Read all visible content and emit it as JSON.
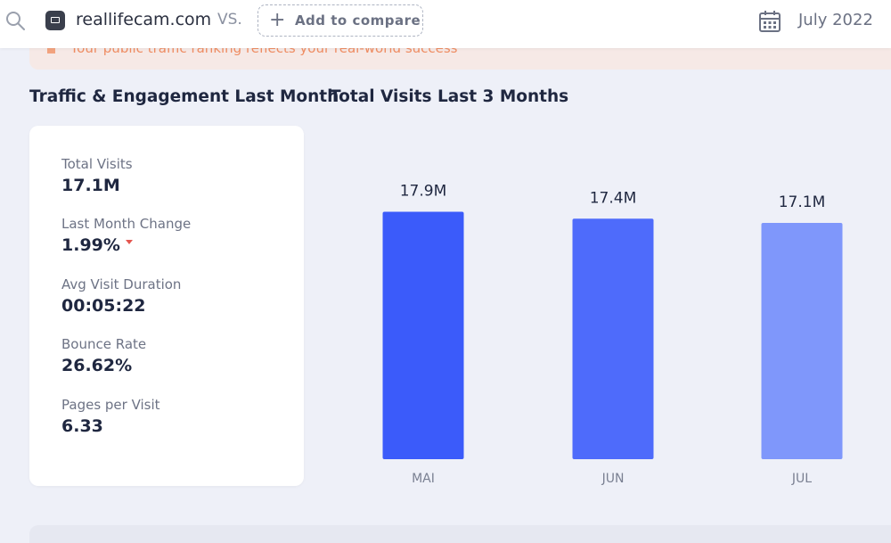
{
  "header": {
    "site": "reallifecam.com",
    "vs": "VS.",
    "compare_label": "Add to compare",
    "date": "July 2022"
  },
  "banner": {
    "text": "Your public traffic ranking reflects your real-world success"
  },
  "sections": {
    "engagement_title": "Traffic & Engagement Last Month",
    "visits_title": "Total Visits Last 3 Months"
  },
  "stats": [
    {
      "label": "Total Visits",
      "value": "17.1M"
    },
    {
      "label": "Last Month Change",
      "value": "1.99%"
    },
    {
      "label": "Avg Visit Duration",
      "value": "00:05:22"
    },
    {
      "label": "Bounce Rate",
      "value": "26.62%"
    },
    {
      "label": "Pages per Visit",
      "value": "6.33"
    }
  ],
  "colors": {
    "bar_1": "#3b5bfa",
    "bar_2": "#4e6bfb",
    "bar_3": "#7f97fb",
    "negative": "#e4564f",
    "banner_text": "#ef8d63"
  },
  "chart_data": {
    "type": "bar",
    "title": "Total Visits Last 3 Months",
    "categories": [
      "MAI",
      "JUN",
      "JUL"
    ],
    "values": [
      17.9,
      17.4,
      17.1
    ],
    "data_labels": [
      "17.9M",
      "17.4M",
      "17.1M"
    ],
    "unit": "M",
    "grid": false,
    "legend": "none"
  }
}
